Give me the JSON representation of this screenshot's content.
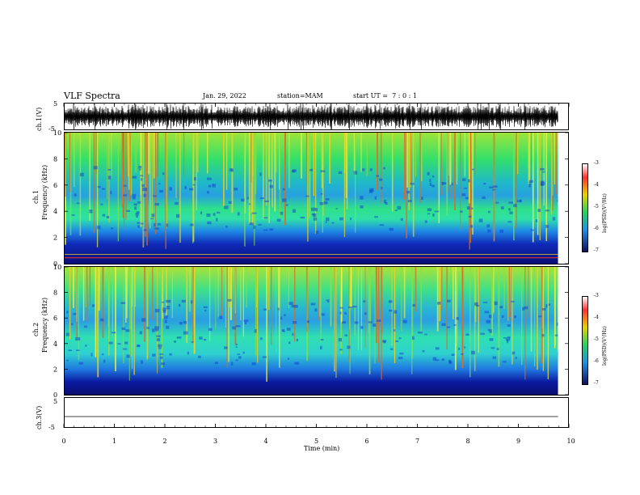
{
  "header": {
    "title": "VLF Spectra",
    "date": "Jan. 29, 2022",
    "station": "station=MAM",
    "start": "start UT =  7 : 0 : 1"
  },
  "panels": {
    "ch1_wave": {
      "ylabel": "ch.1(V)",
      "ticks": [
        "5",
        "-5"
      ]
    },
    "ch1_spec": {
      "ylabel_top": "ch.1",
      "ylabel": "Frequency (kHz)",
      "ticks": [
        "10",
        "8",
        "6",
        "4",
        "2",
        "0"
      ]
    },
    "ch2_spec": {
      "ylabel_top": "ch.2",
      "ylabel": "Frequency (kHz)",
      "ticks": [
        "10",
        "8",
        "6",
        "4",
        "2",
        "0"
      ]
    },
    "ch3_wave": {
      "ylabel": "ch.3(V)",
      "ticks": [
        "5",
        "-5"
      ]
    }
  },
  "colorbar": {
    "ticks": [
      "-3",
      "-4",
      "-5",
      "-6",
      "-7"
    ],
    "label": "log(PSD)(V²/Hz)",
    "colors": [
      "#ffffff",
      "#ff3030",
      "#e8d000",
      "#28d060",
      "#2090e0",
      "#101060"
    ]
  },
  "chart_data": {
    "type": "heatmap",
    "title": "VLF Spectra",
    "xlabel": "Time (min)",
    "x_ticks": [
      "0",
      "1",
      "2",
      "3",
      "4",
      "5",
      "6",
      "7",
      "8",
      "9",
      "10"
    ],
    "xlim": [
      0,
      10
    ],
    "data_end_min": 9.8,
    "series": [
      {
        "name": "ch.1(V)",
        "ylim": [
          -5,
          5
        ]
      },
      {
        "name": "ch.1",
        "ylabel": "Frequency (kHz)",
        "ylim": [
          0,
          10
        ]
      },
      {
        "name": "ch.2",
        "ylabel": "Frequency (kHz)",
        "ylim": [
          0,
          10
        ]
      },
      {
        "name": "ch.3(V)",
        "ylim": [
          -5,
          5
        ]
      }
    ],
    "zlim": [
      -7,
      -3
    ]
  }
}
